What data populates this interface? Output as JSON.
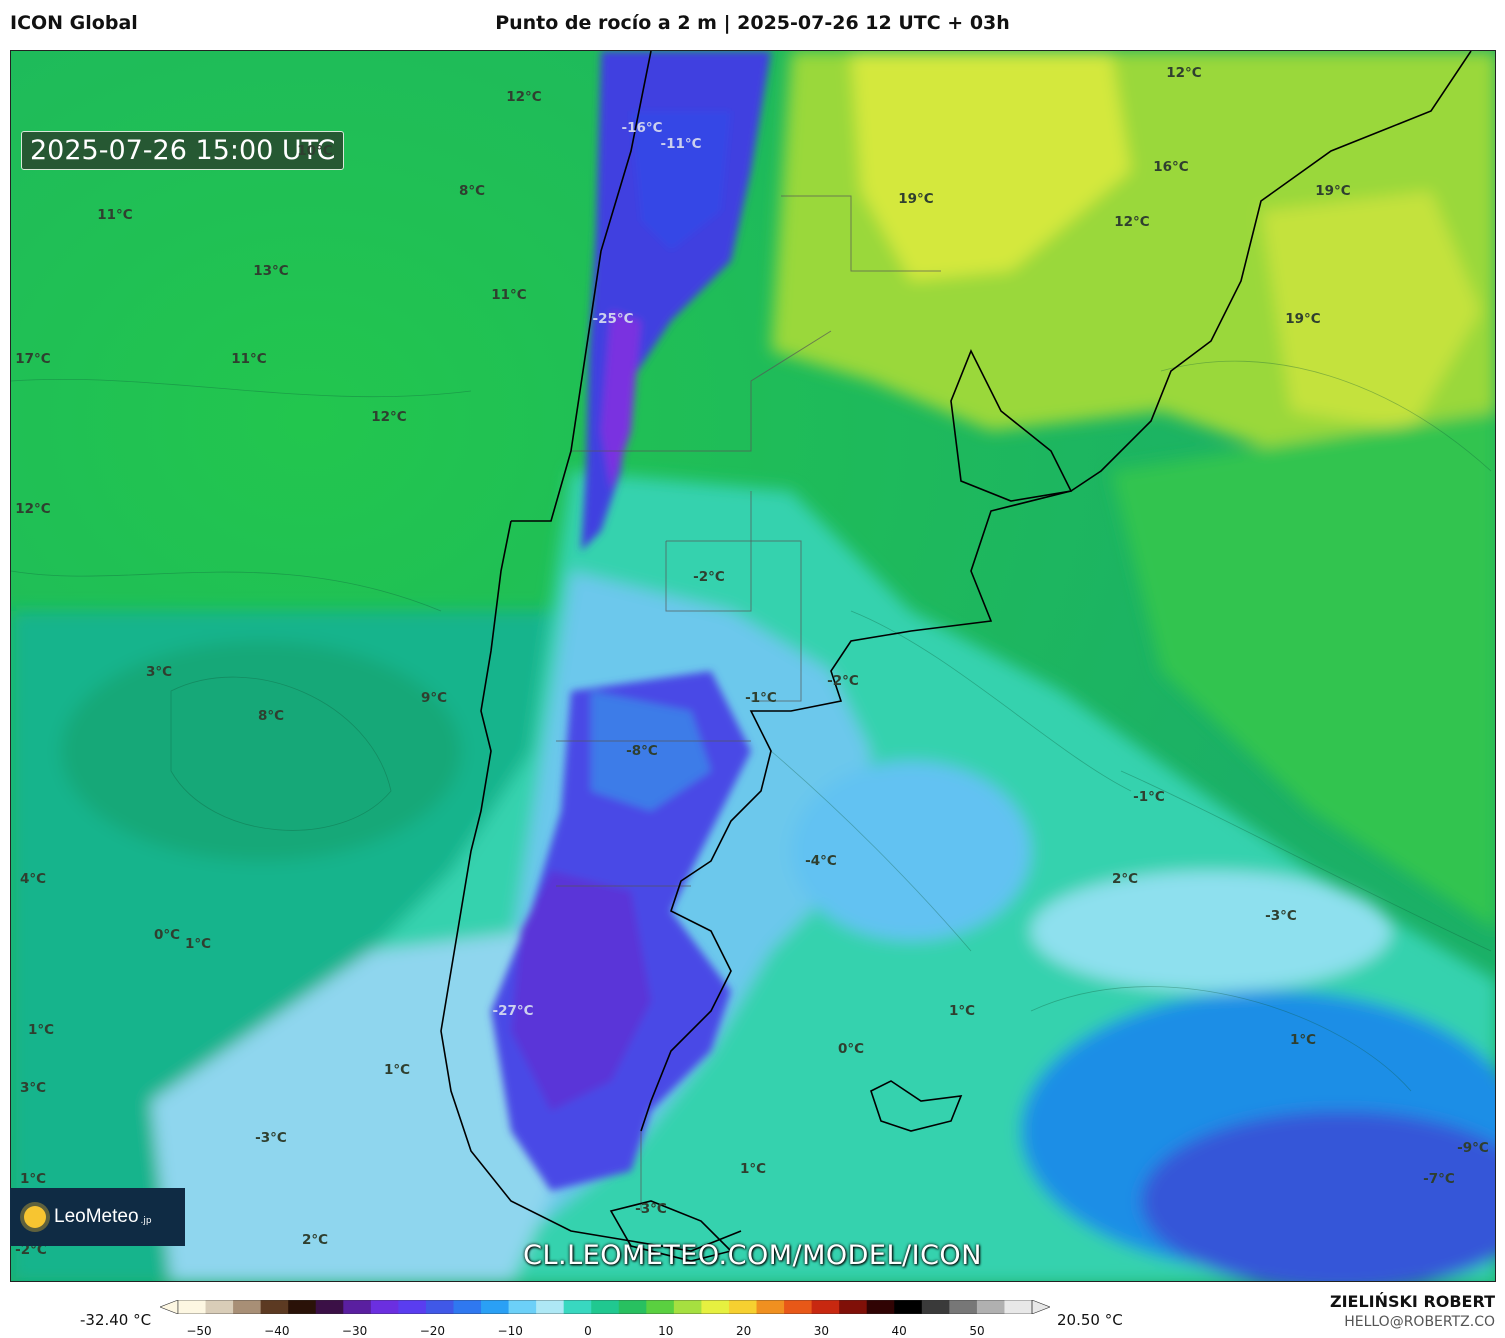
{
  "header": {
    "model": "ICON Global",
    "title": "Punto de rocío a 2 m | 2025-07-26 12 UTC + 03h"
  },
  "map": {
    "valid_time": "2025-07-26 15:00 UTC",
    "watermark": "CL.LEOMETEO.COM/MODEL/ICON",
    "logo_text": "LeoMeteo",
    "logo_suffix": ".jp",
    "labels": [
      {
        "text": "12°C",
        "light": false
      },
      {
        "text": "10°C",
        "light": false
      },
      {
        "text": "8°C",
        "light": false
      },
      {
        "text": "11°C",
        "light": false
      },
      {
        "text": "13°C",
        "light": false
      },
      {
        "text": "11°C",
        "light": false
      },
      {
        "text": "17°C",
        "light": false
      },
      {
        "text": "11°C",
        "light": false
      },
      {
        "text": "12°C",
        "light": false
      },
      {
        "text": "12°C",
        "light": false
      },
      {
        "text": "-16°C",
        "light": true
      },
      {
        "text": "-11°C",
        "light": true
      },
      {
        "text": "-25°C",
        "light": true
      },
      {
        "text": "12°C",
        "light": false
      },
      {
        "text": "16°C",
        "light": false
      },
      {
        "text": "19°C",
        "light": false
      },
      {
        "text": "12°C",
        "light": false
      },
      {
        "text": "19°C",
        "light": false
      },
      {
        "text": "19°C",
        "light": false
      },
      {
        "text": "-2°C",
        "light": false
      },
      {
        "text": "3°C",
        "light": false
      },
      {
        "text": "8°C",
        "light": false
      },
      {
        "text": "9°C",
        "light": false
      },
      {
        "text": "-1°C",
        "light": false
      },
      {
        "text": "-2°C",
        "light": false
      },
      {
        "text": "-8°C",
        "light": false
      },
      {
        "text": "-1°C",
        "light": false
      },
      {
        "text": "-4°C",
        "light": false
      },
      {
        "text": "4°C",
        "light": false
      },
      {
        "text": "2°C",
        "light": false
      },
      {
        "text": "-3°C",
        "light": false
      },
      {
        "text": "0°C",
        "light": false
      },
      {
        "text": "1°C",
        "light": false
      },
      {
        "text": "1°C",
        "light": false
      },
      {
        "text": "-27°C",
        "light": true
      },
      {
        "text": "1°C",
        "light": false
      },
      {
        "text": "1°C",
        "light": false
      },
      {
        "text": "0°C",
        "light": false
      },
      {
        "text": "3°C",
        "light": false
      },
      {
        "text": "1°C",
        "light": false
      },
      {
        "text": "-3°C",
        "light": false
      },
      {
        "text": "1°C",
        "light": false
      },
      {
        "text": "1°C",
        "light": false
      },
      {
        "text": "-9°C",
        "light": false
      },
      {
        "text": "-7°C",
        "light": false
      },
      {
        "text": "-3°C",
        "light": false
      },
      {
        "text": "2°C",
        "light": false
      },
      {
        "text": "-2°C",
        "light": false
      }
    ]
  },
  "legend": {
    "min_label": "-32.40 °C",
    "max_label": "20.50 °C",
    "ticks": [
      "−50",
      "−40",
      "−30",
      "−20",
      "−10",
      "0",
      "10",
      "20",
      "30",
      "40",
      "50"
    ],
    "colors": [
      "#fdf7e2",
      "#d9cdb8",
      "#a88f76",
      "#5c3a22",
      "#2a1208",
      "#3b1046",
      "#5a1fa0",
      "#6b2fe0",
      "#5a3df0",
      "#4058e8",
      "#2f78f0",
      "#2aa0f5",
      "#6cd0f8",
      "#aee8f5",
      "#38d8c0",
      "#20c890",
      "#28c060",
      "#5ad040",
      "#a6e040",
      "#e6f040",
      "#f6d030",
      "#f09020",
      "#e85818",
      "#c82810",
      "#801008",
      "#300404",
      "#000000",
      "#3a3a3a",
      "#777777",
      "#b0b0b0",
      "#e8e8e8"
    ]
  },
  "credit": {
    "author": "ZIELIŃSKI ROBERT",
    "email": "HELLO@ROBERTZ.CO"
  }
}
